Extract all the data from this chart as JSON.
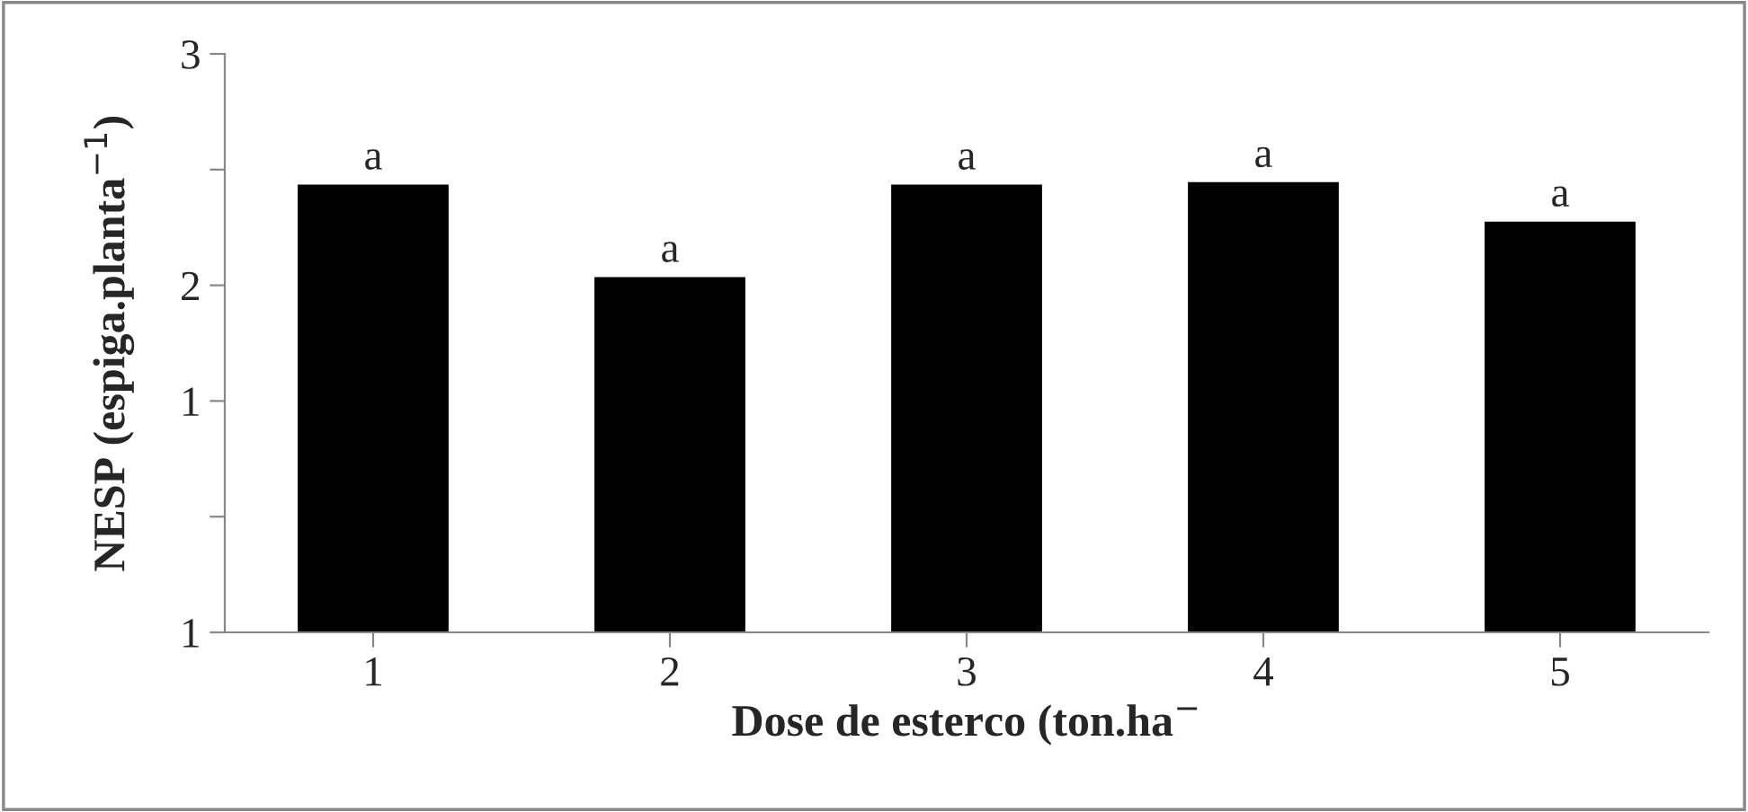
{
  "chart_data": {
    "type": "bar",
    "categories": [
      "1",
      "2",
      "3",
      "4",
      "5"
    ],
    "values": [
      2.43,
      2.03,
      2.43,
      2.44,
      2.27
    ],
    "value_labels": [
      "a",
      "a",
      "a",
      "a",
      "a"
    ],
    "color": "#000000",
    "xlabel": "Dose de esterco (ton.ha$^{−}$",
    "ylabel": "NESP (espiga.planta$^{−1}$)",
    "ylim": [
      0.5,
      3
    ],
    "yticks": [
      {
        "value": 0.5,
        "label": "1"
      },
      {
        "value": 1.0,
        "label": null
      },
      {
        "value": 1.5,
        "label": "1"
      },
      2,
      {
        "value": 2.5,
        "label": null
      },
      3
    ],
    "grid": false
  }
}
